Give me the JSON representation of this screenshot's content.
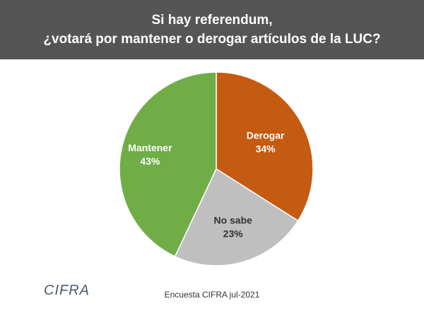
{
  "header": {
    "title_line1": "Si hay referendum,",
    "title_line2": "¿votará por mantener o derogar artículos de la LUC?"
  },
  "chart_data": {
    "type": "pie",
    "title": "Si hay referendum, ¿votará por mantener o derogar artículos de la LUC?",
    "slices": [
      {
        "name": "Derogar",
        "value": 34,
        "label": "34%",
        "color": "#c55a11"
      },
      {
        "name": "No sabe",
        "value": 23,
        "label": "23%",
        "color": "#bfbfbf"
      },
      {
        "name": "Mantener",
        "value": 43,
        "label": "43%",
        "color": "#70ad47"
      }
    ],
    "start": "12 o'clock",
    "direction": "clockwise"
  },
  "footer": {
    "logo_text": "CIFRA",
    "source": "Encuesta CIFRA jul-2021"
  }
}
